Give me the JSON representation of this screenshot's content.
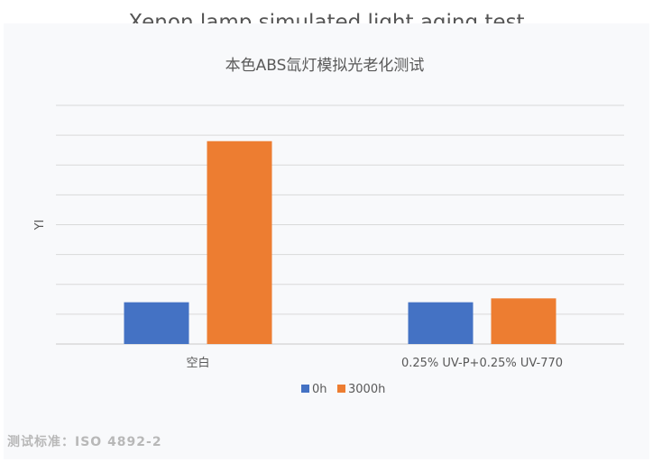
{
  "header": {
    "title": "Xenon lamp simulated light aging test"
  },
  "footnote": "测试标准：ISO 4892-2",
  "colors": {
    "series_0h": "#4472c4",
    "series_3000h": "#ed7d31",
    "gridline": "#d9d9d9",
    "text": "#595959"
  },
  "chart_data": {
    "type": "bar",
    "title": "本色ABS氙灯模拟光老化测试",
    "ylabel": "YI",
    "xlabel": "",
    "categories": [
      "空白",
      "0.25% UV-P+0.25% UV-770"
    ],
    "series": [
      {
        "name": "0h",
        "values": [
          14,
          14
        ]
      },
      {
        "name": "3000h",
        "values": [
          68,
          15.3
        ]
      }
    ],
    "ylim": [
      0,
      80
    ],
    "grid": true,
    "y_tick_labels_shown": false,
    "legend_position": "bottom"
  }
}
